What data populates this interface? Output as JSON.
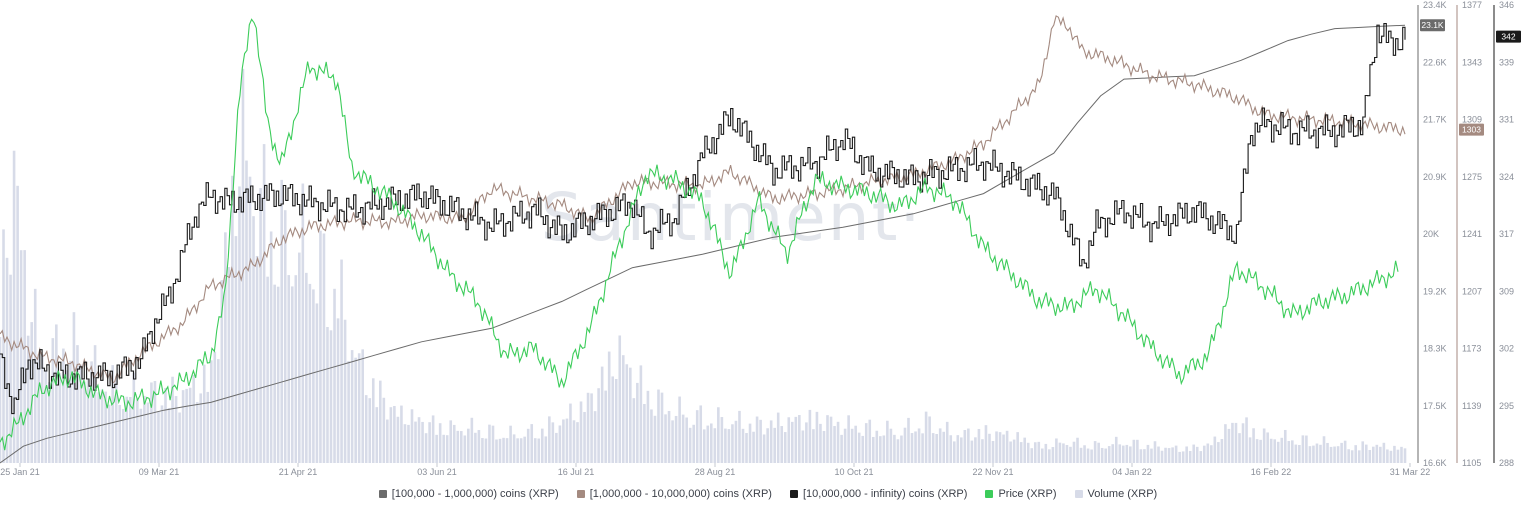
{
  "chart_data": {
    "type": "line",
    "watermark": "·Santiment·",
    "x_ticks": [
      "25 Jan 21",
      "09 Mar 21",
      "21 Apr 21",
      "03 Jun 21",
      "16 Jul 21",
      "28 Aug 21",
      "10 Oct 21",
      "22 Nov 21",
      "04 Jan 22",
      "16 Feb 22",
      "31 Mar 22"
    ],
    "axes": [
      {
        "id": "a100k",
        "ticks": [
          "23.4K",
          "22.6K",
          "21.7K",
          "20.9K",
          "20K",
          "19.2K",
          "18.3K",
          "17.5K",
          "16.6K"
        ],
        "ylim": [
          16600,
          23400
        ],
        "current": "23.1K",
        "color": "#6b6b6b"
      },
      {
        "id": "a1m",
        "ticks": [
          "1377",
          "1343",
          "1309",
          "1275",
          "1241",
          "1207",
          "1173",
          "1139",
          "1105"
        ],
        "ylim": [
          1105,
          1377
        ],
        "current": "1303",
        "color": "#a48a80"
      },
      {
        "id": "a10m",
        "ticks": [
          "346",
          "339",
          "331",
          "324",
          "317",
          "309",
          "302",
          "295",
          "288"
        ],
        "ylim": [
          288,
          346
        ],
        "current": "342",
        "color": "#1a1a1a"
      }
    ],
    "series": [
      {
        "name": "[100,000  - 1,000,000) coins (XRP)",
        "color": "#6b6b6b",
        "axis": "a100k",
        "x": [
          0,
          0.02,
          0.05,
          0.08,
          0.12,
          0.15,
          0.2,
          0.25,
          0.3,
          0.35,
          0.4,
          0.45,
          0.5,
          0.55,
          0.6,
          0.65,
          0.7,
          0.75,
          0.78,
          0.8,
          0.85,
          0.88,
          0.92,
          0.95,
          1.0
        ],
        "values": [
          16600,
          16900,
          17050,
          17200,
          17400,
          17500,
          17800,
          18100,
          18400,
          18600,
          19000,
          19500,
          19700,
          19950,
          20100,
          20300,
          20600,
          21200,
          22000,
          22300,
          22350,
          22550,
          22900,
          23050,
          23100
        ]
      },
      {
        "name": "[1,000,000 - 10,000,000) coins (XRP)",
        "color": "#a48a80",
        "axis": "a1m",
        "x": [
          0,
          0.03,
          0.05,
          0.08,
          0.1,
          0.13,
          0.15,
          0.18,
          0.2,
          0.22,
          0.25,
          0.28,
          0.3,
          0.33,
          0.35,
          0.38,
          0.4,
          0.42,
          0.45,
          0.5,
          0.52,
          0.55,
          0.58,
          0.6,
          0.62,
          0.65,
          0.68,
          0.7,
          0.72,
          0.74,
          0.75,
          0.76,
          0.77,
          0.79,
          0.82,
          0.85,
          0.88,
          0.9,
          0.92,
          0.95,
          0.98,
          1.0
        ],
        "values": [
          1180,
          1168,
          1165,
          1155,
          1170,
          1188,
          1210,
          1222,
          1238,
          1245,
          1249,
          1248,
          1252,
          1250,
          1268,
          1262,
          1258,
          1250,
          1272,
          1270,
          1278,
          1262,
          1265,
          1268,
          1272,
          1276,
          1285,
          1295,
          1312,
          1330,
          1368,
          1365,
          1350,
          1345,
          1335,
          1330,
          1322,
          1312,
          1310,
          1308,
          1305,
          1303
        ]
      },
      {
        "name": "[10,000,000 - infinity) coins (XRP)",
        "color": "#1a1a1a",
        "axis": "a10m",
        "x": [
          0,
          0.01,
          0.02,
          0.04,
          0.06,
          0.08,
          0.1,
          0.11,
          0.12,
          0.14,
          0.15,
          0.16,
          0.2,
          0.22,
          0.25,
          0.3,
          0.35,
          0.38,
          0.4,
          0.41,
          0.45,
          0.46,
          0.48,
          0.5,
          0.52,
          0.55,
          0.58,
          0.6,
          0.62,
          0.65,
          0.7,
          0.75,
          0.76,
          0.77,
          0.78,
          0.8,
          0.82,
          0.85,
          0.88,
          0.89,
          0.9,
          0.92,
          0.95,
          0.97,
          0.98,
          0.99,
          1.0
        ],
        "values": [
          301,
          295,
          301,
          299,
          299,
          299,
          301,
          306,
          309,
          320,
          322,
          321,
          322,
          321,
          320,
          322,
          318,
          320,
          317,
          318,
          321,
          317,
          319,
          327,
          332,
          325,
          326,
          329,
          325,
          324,
          326,
          322,
          318,
          313,
          318,
          320,
          318,
          320,
          317,
          330,
          331,
          330,
          330,
          331,
          343,
          341,
          342
        ]
      },
      {
        "name": "Price (XRP)",
        "color": "#3ccc5a",
        "axis": "a100k",
        "render_only_scale": true,
        "x": [
          0,
          0.01,
          0.03,
          0.05,
          0.07,
          0.09,
          0.11,
          0.13,
          0.15,
          0.16,
          0.17,
          0.18,
          0.19,
          0.2,
          0.22,
          0.24,
          0.25,
          0.26,
          0.28,
          0.3,
          0.32,
          0.34,
          0.36,
          0.38,
          0.4,
          0.42,
          0.44,
          0.46,
          0.48,
          0.5,
          0.52,
          0.54,
          0.56,
          0.58,
          0.6,
          0.62,
          0.64,
          0.66,
          0.68,
          0.7,
          0.72,
          0.74,
          0.76,
          0.78,
          0.8,
          0.82,
          0.84,
          0.86,
          0.88,
          0.9,
          0.92,
          0.94,
          0.96,
          0.98,
          0.995
        ],
        "values": [
          16900,
          17100,
          17700,
          17900,
          17600,
          17500,
          17600,
          17800,
          18200,
          19000,
          22000,
          23400,
          21700,
          21000,
          22500,
          22300,
          21000,
          20800,
          20500,
          20000,
          19400,
          19000,
          18200,
          18300,
          17800,
          18600,
          19800,
          20900,
          20800,
          20500,
          19400,
          20500,
          19700,
          20800,
          20700,
          20600,
          20400,
          20700,
          20500,
          19800,
          19400,
          19000,
          18900,
          19200,
          18800,
          18300,
          17900,
          18200,
          19500,
          19200,
          18800,
          19000,
          19100,
          19300,
          19450
        ]
      },
      {
        "name": "Volume (XRP)",
        "color": "#d7dbe8",
        "type": "bar",
        "render_only_scale": true,
        "x": [
          0,
          0.01,
          0.02,
          0.03,
          0.05,
          0.07,
          0.09,
          0.11,
          0.13,
          0.15,
          0.16,
          0.17,
          0.18,
          0.19,
          0.2,
          0.22,
          0.24,
          0.25,
          0.26,
          0.28,
          0.3,
          0.32,
          0.34,
          0.36,
          0.38,
          0.4,
          0.42,
          0.44,
          0.46,
          0.48,
          0.5,
          0.52,
          0.54,
          0.56,
          0.58,
          0.6,
          0.62,
          0.64,
          0.66,
          0.68,
          0.7,
          0.72,
          0.74,
          0.76,
          0.78,
          0.8,
          0.82,
          0.84,
          0.86,
          0.88,
          0.9,
          0.92,
          0.94,
          0.96,
          0.98,
          1.0
        ],
        "values": [
          0.5,
          0.8,
          0.5,
          0.3,
          0.35,
          0.25,
          0.2,
          0.2,
          0.2,
          0.25,
          0.55,
          0.95,
          0.8,
          0.7,
          0.65,
          0.6,
          0.5,
          0.35,
          0.25,
          0.15,
          0.12,
          0.1,
          0.1,
          0.08,
          0.09,
          0.12,
          0.18,
          0.32,
          0.2,
          0.15,
          0.13,
          0.12,
          0.11,
          0.12,
          0.13,
          0.11,
          0.1,
          0.09,
          0.12,
          0.08,
          0.09,
          0.08,
          0.05,
          0.06,
          0.05,
          0.06,
          0.05,
          0.04,
          0.05,
          0.12,
          0.08,
          0.07,
          0.06,
          0.05,
          0.05,
          0.04
        ]
      }
    ]
  }
}
